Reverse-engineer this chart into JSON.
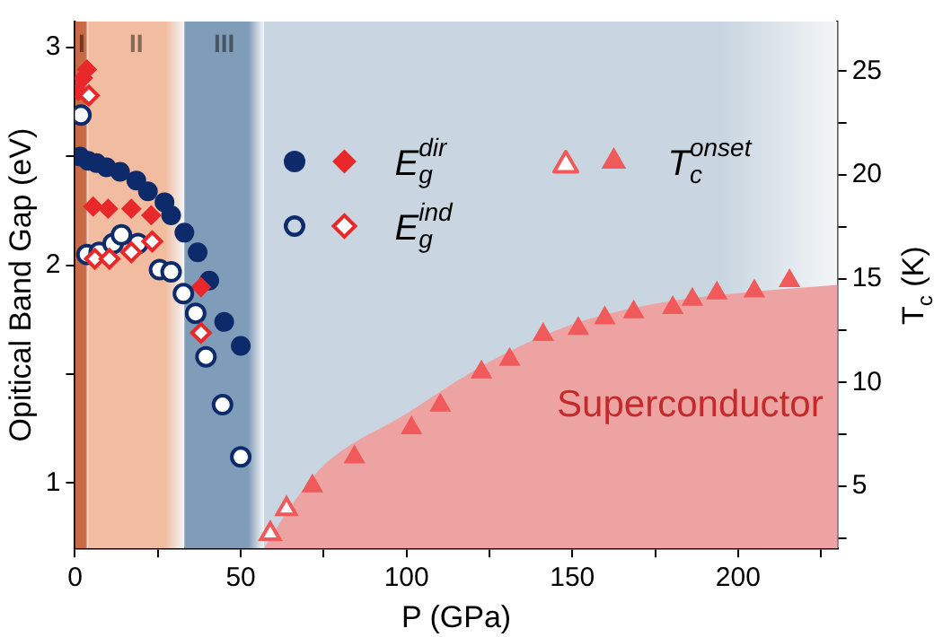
{
  "chart_data": {
    "type": "scatter",
    "xlabel": "P (GPa)",
    "ylabel": "Opitical Band Gap (eV)",
    "y2label": "T$_{c}$ (K)",
    "xlim": [
      0,
      230
    ],
    "xticks": [
      0,
      {
        "value": 25,
        "label": null
      },
      50,
      {
        "value": 75,
        "label": null
      },
      100,
      {
        "value": 125,
        "label": null
      },
      150,
      {
        "value": 175,
        "label": null
      },
      200,
      {
        "value": 225,
        "label": null
      }
    ],
    "ylim": [
      0.7,
      3.12
    ],
    "yticks": [
      1,
      {
        "value": 1.5,
        "label": null
      },
      2,
      {
        "value": 2.5,
        "label": null
      },
      3
    ],
    "y2lim": [
      2,
      27.4
    ],
    "y2ticks": [
      {
        "value": 2.5,
        "label": null
      },
      5,
      {
        "value": 7.5,
        "label": null
      },
      10,
      {
        "value": 12.5,
        "label": null
      },
      15,
      {
        "value": 17.5,
        "label": null
      },
      20,
      {
        "value": 22.5,
        "label": null
      },
      25
    ],
    "legend": "top right",
    "grid": false,
    "bands": [
      {
        "axis": "x",
        "from": 0,
        "to": 4,
        "label": "I",
        "color": "#c86a45"
      },
      {
        "axis": "x",
        "from": 4,
        "to": 33,
        "label": "II",
        "color": "#f2bca0"
      },
      {
        "axis": "x",
        "from": 33,
        "to": 57,
        "label": "III",
        "color": "#7f9cb8"
      },
      {
        "axis": "x",
        "from": 57,
        "to": 230,
        "color": "#c9d6e1"
      }
    ],
    "annotations": [
      "Superconductor"
    ],
    "series": [
      {
        "type": "area",
        "axis": "y2",
        "color": "#eea3a3",
        "x": [
          57,
          65,
          75,
          100,
          125,
          150,
          175,
          200,
          230
        ],
        "values": [
          2,
          4,
          6,
          8.5,
          11,
          12.8,
          13.8,
          14.3,
          14.7
        ]
      },
      {
        "color": "#0d2b6b",
        "marker": "circle",
        "x": [
          1.5,
          4,
          6.5,
          9.5,
          13.6,
          18.5,
          22,
          27,
          29,
          33,
          37,
          40.5,
          45,
          50
        ],
        "values": [
          2.5,
          2.48,
          2.47,
          2.45,
          2.43,
          2.39,
          2.34,
          2.29,
          2.23,
          2.15,
          2.06,
          1.93,
          1.74,
          1.63
        ]
      },
      {
        "name": "E$_{g}$$^{dir}$",
        "color": "#e8282a",
        "marker": "diamond",
        "x": [
          1,
          2.4,
          3.6,
          5.5,
          10,
          17,
          23,
          38
        ],
        "values": [
          2.8,
          2.86,
          2.9,
          2.27,
          2.26,
          2.26,
          2.23,
          1.9
        ]
      },
      {
        "color": "#0d2b6b",
        "marker": "circle-open",
        "x": [
          1.8,
          3.6,
          7.3,
          11.5,
          14,
          19,
          25.5,
          29,
          32.7,
          36.4,
          39.5,
          44.5,
          50
        ],
        "values": [
          2.69,
          2.05,
          2.06,
          2.1,
          2.14,
          2.1,
          1.98,
          1.97,
          1.87,
          1.78,
          1.58,
          1.36,
          1.12
        ]
      },
      {
        "name": "E$_{g}$$^{ind}$",
        "color": "#e8282a",
        "marker": "diamond-open",
        "x": [
          4.2,
          6,
          10.4,
          17,
          23.3,
          38
        ],
        "values": [
          2.78,
          2.03,
          2.03,
          2.06,
          2.11,
          1.69
        ]
      },
      {
        "color": "#f05a5a",
        "marker": "triangle-open",
        "axis": "y2",
        "x": [
          58.9,
          63.8
        ],
        "values": [
          2.7,
          3.9
        ]
      },
      {
        "name": "T$_{c}$$^{onset}$",
        "color": "#f05a5a",
        "marker": "triangle",
        "axis": "y2",
        "x": [
          71.6,
          84.3,
          101.5,
          110.2,
          122.6,
          131.1,
          141.2,
          151.8,
          159.8,
          168.5,
          180.3,
          186.2,
          193.6,
          204.9,
          215.5
        ],
        "values": [
          5.0,
          6.4,
          7.8,
          8.9,
          10.5,
          11.1,
          12.3,
          12.6,
          13.1,
          13.4,
          13.6,
          14,
          14.3,
          14.4,
          14.9
        ]
      }
    ]
  }
}
